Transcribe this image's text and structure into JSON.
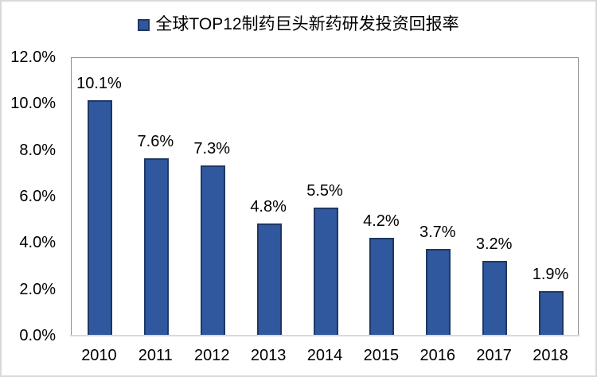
{
  "legend": {
    "swatch_color": "#2f589e",
    "label": "全球TOP12制药巨头新药研发投资回报率"
  },
  "colors": {
    "bar_fill": "#2f589e",
    "bar_border": "#1f3864",
    "plot_border": "#8b8b8b",
    "axis_line": "#d9d9d9",
    "outer_border": "#d9d9d9",
    "text": "#000000",
    "background": "#ffffff"
  },
  "chart_data": {
    "type": "bar",
    "title": "全球TOP12制药巨头新药研发投资回报率",
    "categories": [
      "2010",
      "2011",
      "2012",
      "2013",
      "2014",
      "2015",
      "2016",
      "2017",
      "2018"
    ],
    "values": [
      10.1,
      7.6,
      7.3,
      4.8,
      5.5,
      4.2,
      3.7,
      3.2,
      1.9
    ],
    "data_labels": [
      "10.1%",
      "7.6%",
      "7.3%",
      "4.8%",
      "5.5%",
      "4.2%",
      "3.7%",
      "3.2%",
      "1.9%"
    ],
    "xlabel": "",
    "ylabel": "",
    "ylim": [
      0,
      12
    ],
    "ytick_step": 2,
    "ytick_labels": [
      "0.0%",
      "2.0%",
      "4.0%",
      "6.0%",
      "8.0%",
      "10.0%",
      "12.0%"
    ],
    "grid": false,
    "legend_position": "top-center",
    "bar_color": "#2f589e"
  }
}
